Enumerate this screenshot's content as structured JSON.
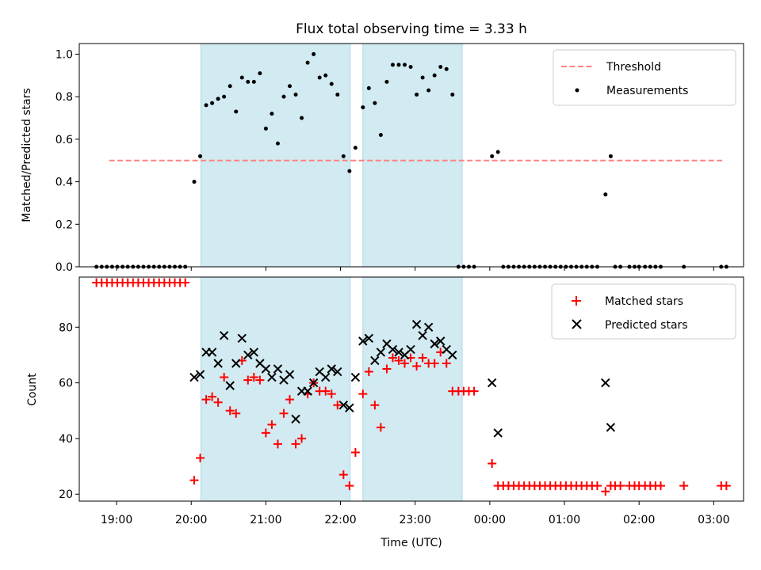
{
  "title": "Flux total observing time = 3.33 h",
  "colors": {
    "shade": "#add8e6",
    "threshold": "#ff8080",
    "measurements": "#000000",
    "matched": "#ff0000",
    "predicted": "#000000"
  },
  "chart_data": [
    {
      "type": "scatter",
      "ylabel": "Matched/Predicted stars",
      "ylim": [
        0,
        1.05
      ],
      "yticks": [
        "0.0",
        "0.2",
        "0.4",
        "0.6",
        "0.8",
        "1.0"
      ],
      "xlim": [
        18.5,
        27.4
      ],
      "shaded_intervals": [
        [
          20.13,
          22.13
        ],
        [
          22.3,
          23.63
        ]
      ],
      "threshold": {
        "name": "Threshold",
        "value": 0.5,
        "x_range": [
          18.9,
          27.15
        ]
      },
      "legend": {
        "position": "top-right",
        "entries": [
          "Threshold",
          "Measurements"
        ]
      },
      "series": [
        {
          "name": "Measurements",
          "points": [
            [
              18.73,
              0
            ],
            [
              18.8,
              0
            ],
            [
              18.87,
              0
            ],
            [
              18.94,
              0
            ],
            [
              19.01,
              0
            ],
            [
              19.08,
              0
            ],
            [
              19.15,
              0
            ],
            [
              19.22,
              0
            ],
            [
              19.29,
              0
            ],
            [
              19.36,
              0
            ],
            [
              19.43,
              0
            ],
            [
              19.5,
              0
            ],
            [
              19.57,
              0
            ],
            [
              19.64,
              0
            ],
            [
              19.71,
              0
            ],
            [
              19.78,
              0
            ],
            [
              19.85,
              0
            ],
            [
              19.92,
              0
            ],
            [
              20.04,
              0.4
            ],
            [
              20.12,
              0.52
            ],
            [
              20.2,
              0.76
            ],
            [
              20.28,
              0.77
            ],
            [
              20.36,
              0.79
            ],
            [
              20.44,
              0.8
            ],
            [
              20.52,
              0.85
            ],
            [
              20.6,
              0.73
            ],
            [
              20.68,
              0.89
            ],
            [
              20.76,
              0.87
            ],
            [
              20.84,
              0.87
            ],
            [
              20.92,
              0.91
            ],
            [
              21.0,
              0.65
            ],
            [
              21.08,
              0.72
            ],
            [
              21.16,
              0.58
            ],
            [
              21.24,
              0.8
            ],
            [
              21.32,
              0.85
            ],
            [
              21.4,
              0.81
            ],
            [
              21.48,
              0.7
            ],
            [
              21.56,
              0.96
            ],
            [
              21.64,
              1.0
            ],
            [
              21.72,
              0.89
            ],
            [
              21.8,
              0.9
            ],
            [
              21.88,
              0.86
            ],
            [
              21.96,
              0.81
            ],
            [
              22.04,
              0.52
            ],
            [
              22.12,
              0.45
            ],
            [
              22.2,
              0.56
            ],
            [
              22.3,
              0.75
            ],
            [
              22.38,
              0.84
            ],
            [
              22.46,
              0.77
            ],
            [
              22.54,
              0.62
            ],
            [
              22.62,
              0.87
            ],
            [
              22.7,
              0.95
            ],
            [
              22.78,
              0.95
            ],
            [
              22.86,
              0.95
            ],
            [
              22.94,
              0.94
            ],
            [
              23.02,
              0.81
            ],
            [
              23.1,
              0.89
            ],
            [
              23.18,
              0.83
            ],
            [
              23.26,
              0.9
            ],
            [
              23.34,
              0.94
            ],
            [
              23.42,
              0.93
            ],
            [
              23.5,
              0.81
            ],
            [
              23.58,
              0
            ],
            [
              23.65,
              0
            ],
            [
              23.72,
              0
            ],
            [
              23.79,
              0
            ],
            [
              24.03,
              0.52
            ],
            [
              24.11,
              0.54
            ],
            [
              24.18,
              0
            ],
            [
              24.25,
              0
            ],
            [
              24.32,
              0
            ],
            [
              24.39,
              0
            ],
            [
              24.46,
              0
            ],
            [
              24.53,
              0
            ],
            [
              24.6,
              0
            ],
            [
              24.67,
              0
            ],
            [
              24.74,
              0
            ],
            [
              24.81,
              0
            ],
            [
              24.88,
              0
            ],
            [
              24.95,
              0
            ],
            [
              25.02,
              0
            ],
            [
              25.09,
              0
            ],
            [
              25.16,
              0
            ],
            [
              25.23,
              0
            ],
            [
              25.3,
              0
            ],
            [
              25.37,
              0
            ],
            [
              25.44,
              0
            ],
            [
              25.55,
              0.34
            ],
            [
              25.62,
              0.52
            ],
            [
              25.68,
              0
            ],
            [
              25.75,
              0
            ],
            [
              25.87,
              0
            ],
            [
              25.94,
              0
            ],
            [
              26.0,
              0
            ],
            [
              26.08,
              0
            ],
            [
              26.15,
              0
            ],
            [
              26.22,
              0
            ],
            [
              26.29,
              0
            ],
            [
              26.6,
              0
            ],
            [
              27.1,
              0
            ],
            [
              27.17,
              0
            ]
          ]
        }
      ]
    },
    {
      "type": "scatter",
      "xlabel": "Time (UTC)",
      "ylabel": "Count",
      "ylim": [
        17.5,
        98
      ],
      "yticks": [
        "20",
        "40",
        "60",
        "80"
      ],
      "xlim": [
        18.5,
        27.4
      ],
      "xticks": [
        "19:00",
        "20:00",
        "21:00",
        "22:00",
        "23:00",
        "00:00",
        "01:00",
        "02:00",
        "03:00"
      ],
      "shaded_intervals": [
        [
          20.13,
          22.13
        ],
        [
          22.3,
          23.63
        ]
      ],
      "legend": {
        "position": "top-right",
        "entries": [
          "Matched stars",
          "Predicted stars"
        ]
      },
      "series": [
        {
          "name": "Matched stars",
          "marker": "+",
          "points": [
            [
              18.73,
              96
            ],
            [
              18.8,
              96
            ],
            [
              18.87,
              96
            ],
            [
              18.94,
              96
            ],
            [
              19.01,
              96
            ],
            [
              19.08,
              96
            ],
            [
              19.15,
              96
            ],
            [
              19.22,
              96
            ],
            [
              19.29,
              96
            ],
            [
              19.36,
              96
            ],
            [
              19.43,
              96
            ],
            [
              19.5,
              96
            ],
            [
              19.57,
              96
            ],
            [
              19.64,
              96
            ],
            [
              19.71,
              96
            ],
            [
              19.78,
              96
            ],
            [
              19.85,
              96
            ],
            [
              19.92,
              96
            ],
            [
              20.04,
              25
            ],
            [
              20.12,
              33
            ],
            [
              20.2,
              54
            ],
            [
              20.28,
              55
            ],
            [
              20.36,
              53
            ],
            [
              20.44,
              62
            ],
            [
              20.52,
              50
            ],
            [
              20.6,
              49
            ],
            [
              20.68,
              68
            ],
            [
              20.76,
              61
            ],
            [
              20.84,
              62
            ],
            [
              20.92,
              61
            ],
            [
              21.0,
              42
            ],
            [
              21.08,
              45
            ],
            [
              21.16,
              38
            ],
            [
              21.24,
              49
            ],
            [
              21.32,
              54
            ],
            [
              21.4,
              38
            ],
            [
              21.48,
              40
            ],
            [
              21.56,
              56
            ],
            [
              21.64,
              60
            ],
            [
              21.72,
              57
            ],
            [
              21.8,
              57
            ],
            [
              21.88,
              56
            ],
            [
              21.96,
              52
            ],
            [
              22.04,
              27
            ],
            [
              22.12,
              23
            ],
            [
              22.2,
              35
            ],
            [
              22.3,
              56
            ],
            [
              22.38,
              64
            ],
            [
              22.46,
              52
            ],
            [
              22.54,
              44
            ],
            [
              22.62,
              65
            ],
            [
              22.7,
              69
            ],
            [
              22.78,
              68
            ],
            [
              22.86,
              67
            ],
            [
              22.94,
              69
            ],
            [
              23.02,
              66
            ],
            [
              23.1,
              69
            ],
            [
              23.18,
              67
            ],
            [
              23.26,
              67
            ],
            [
              23.34,
              71
            ],
            [
              23.42,
              67
            ],
            [
              23.5,
              57
            ],
            [
              23.58,
              57
            ],
            [
              23.65,
              57
            ],
            [
              23.72,
              57
            ],
            [
              23.79,
              57
            ],
            [
              24.03,
              31
            ],
            [
              24.11,
              23
            ],
            [
              24.18,
              23
            ],
            [
              24.25,
              23
            ],
            [
              24.32,
              23
            ],
            [
              24.39,
              23
            ],
            [
              24.46,
              23
            ],
            [
              24.53,
              23
            ],
            [
              24.6,
              23
            ],
            [
              24.67,
              23
            ],
            [
              24.74,
              23
            ],
            [
              24.81,
              23
            ],
            [
              24.88,
              23
            ],
            [
              24.95,
              23
            ],
            [
              25.02,
              23
            ],
            [
              25.09,
              23
            ],
            [
              25.16,
              23
            ],
            [
              25.23,
              23
            ],
            [
              25.3,
              23
            ],
            [
              25.37,
              23
            ],
            [
              25.44,
              23
            ],
            [
              25.55,
              21
            ],
            [
              25.62,
              23
            ],
            [
              25.68,
              23
            ],
            [
              25.75,
              23
            ],
            [
              25.87,
              23
            ],
            [
              25.94,
              23
            ],
            [
              26.0,
              23
            ],
            [
              26.08,
              23
            ],
            [
              26.15,
              23
            ],
            [
              26.22,
              23
            ],
            [
              26.29,
              23
            ],
            [
              26.6,
              23
            ],
            [
              27.1,
              23
            ],
            [
              27.17,
              23
            ]
          ]
        },
        {
          "name": "Predicted stars",
          "marker": "x",
          "points": [
            [
              20.04,
              62
            ],
            [
              20.12,
              63
            ],
            [
              20.2,
              71
            ],
            [
              20.28,
              71
            ],
            [
              20.36,
              67
            ],
            [
              20.44,
              77
            ],
            [
              20.52,
              59
            ],
            [
              20.6,
              67
            ],
            [
              20.68,
              76
            ],
            [
              20.76,
              70
            ],
            [
              20.84,
              71
            ],
            [
              20.92,
              67
            ],
            [
              21.0,
              65
            ],
            [
              21.08,
              62
            ],
            [
              21.16,
              65
            ],
            [
              21.24,
              61
            ],
            [
              21.32,
              63
            ],
            [
              21.4,
              47
            ],
            [
              21.48,
              57
            ],
            [
              21.56,
              57
            ],
            [
              21.64,
              60
            ],
            [
              21.72,
              64
            ],
            [
              21.8,
              62
            ],
            [
              21.88,
              65
            ],
            [
              21.96,
              64
            ],
            [
              22.04,
              52
            ],
            [
              22.12,
              51
            ],
            [
              22.2,
              62
            ],
            [
              22.3,
              75
            ],
            [
              22.38,
              76
            ],
            [
              22.46,
              68
            ],
            [
              22.54,
              71
            ],
            [
              22.62,
              74
            ],
            [
              22.7,
              72
            ],
            [
              22.78,
              71
            ],
            [
              22.86,
              70
            ],
            [
              22.94,
              72
            ],
            [
              23.02,
              81
            ],
            [
              23.1,
              77
            ],
            [
              23.18,
              80
            ],
            [
              23.26,
              74
            ],
            [
              23.34,
              75
            ],
            [
              23.42,
              72
            ],
            [
              23.5,
              70
            ],
            [
              24.03,
              60
            ],
            [
              24.11,
              42
            ],
            [
              25.55,
              60
            ],
            [
              25.62,
              44
            ]
          ]
        }
      ]
    }
  ]
}
